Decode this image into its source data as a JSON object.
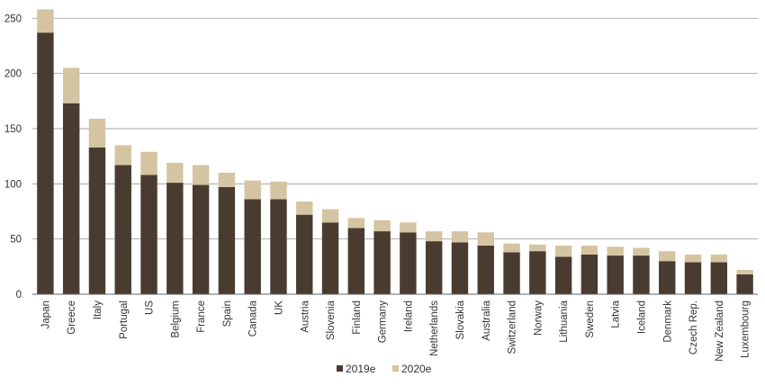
{
  "chart_data": {
    "type": "bar",
    "stacked": true,
    "title": "",
    "xlabel": "",
    "ylabel": "",
    "ylim": [
      0,
      260
    ],
    "yticks": [
      0,
      50,
      100,
      150,
      200,
      250
    ],
    "grid": true,
    "legend_position": "bottom-center",
    "categories": [
      "Japan",
      "Greece",
      "Italy",
      "Portugal",
      "US",
      "Belgium",
      "France",
      "Spain",
      "Canada",
      "UK",
      "Austria",
      "Slovenia",
      "Finland",
      "Germany",
      "Ireland",
      "Netherlands",
      "Slovakia",
      "Australia",
      "Switzerland",
      "Norway",
      "Lithuania",
      "Sweden",
      "Latvia",
      "Iceland",
      "Denmark",
      "Czech Rep.",
      "New Zealand",
      "Luxembourg"
    ],
    "series": [
      {
        "name": "2019e",
        "color": "#4a3b30",
        "values": [
          237,
          173,
          133,
          117,
          108,
          101,
          99,
          97,
          86,
          86,
          72,
          65,
          60,
          57,
          56,
          48,
          47,
          44,
          38,
          39,
          34,
          36,
          35,
          35,
          30,
          29,
          29,
          18
        ]
      },
      {
        "name": "2020e",
        "color": "#d5c4a1",
        "values": [
          21,
          32,
          26,
          18,
          21,
          18,
          18,
          13,
          17,
          16,
          12,
          12,
          9,
          10,
          9,
          9,
          10,
          12,
          8,
          6,
          10,
          8,
          8,
          7,
          9,
          7,
          7,
          4
        ]
      }
    ]
  }
}
